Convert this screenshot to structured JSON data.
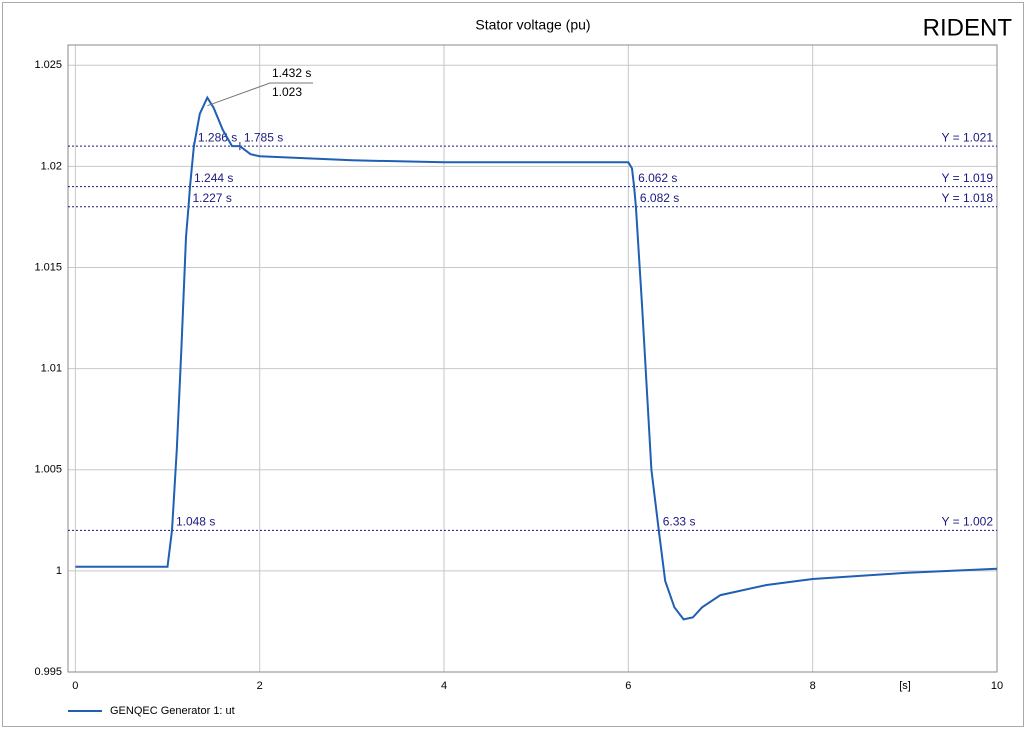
{
  "chart_data": {
    "type": "line",
    "title": "Stator voltage (pu)",
    "logo": "RIDENT",
    "x_unit": "[s]",
    "x": [
      0,
      1.0,
      1.048,
      1.1,
      1.15,
      1.2,
      1.227,
      1.244,
      1.286,
      1.35,
      1.432,
      1.5,
      1.6,
      1.7,
      1.785,
      1.9,
      2.0,
      2.5,
      3,
      4,
      5,
      6.0,
      6.04,
      6.062,
      6.082,
      6.15,
      6.2,
      6.25,
      6.33,
      6.4,
      6.5,
      6.6,
      6.7,
      6.8,
      7,
      7.5,
      8,
      9,
      10
    ],
    "series": [
      {
        "name": "GENQEC Generator 1: ut",
        "color": "#1f5fb4",
        "values": [
          1.0002,
          1.0002,
          1.002,
          1.006,
          1.011,
          1.0165,
          1.018,
          1.019,
          1.021,
          1.0226,
          1.0234,
          1.0229,
          1.0218,
          1.021,
          1.021,
          1.0206,
          1.0205,
          1.0204,
          1.0203,
          1.0202,
          1.0202,
          1.0202,
          1.0199,
          1.019,
          1.018,
          1.013,
          1.009,
          1.005,
          1.002,
          0.9995,
          0.9982,
          0.9976,
          0.9977,
          0.9982,
          0.9988,
          0.9993,
          0.9996,
          0.9999,
          1.0001
        ]
      }
    ],
    "xlim": [
      -0.08,
      10
    ],
    "ylim": [
      0.995,
      1.026
    ],
    "xticks": [
      0,
      2,
      4,
      6,
      8,
      10
    ],
    "yticks": [
      0.995,
      1,
      1.005,
      1.01,
      1.015,
      1.02,
      1.025
    ],
    "grid": true,
    "hlines": [
      {
        "value": 1.021,
        "label": "Y = 1.021",
        "crossings": [
          {
            "value": 1.286,
            "label": "1.286 s"
          },
          {
            "value": 1.785,
            "label": "1.785 s"
          }
        ]
      },
      {
        "value": 1.019,
        "label": "Y = 1.019",
        "crossings": [
          {
            "value": 1.244,
            "label": "1.244 s"
          },
          {
            "value": 6.062,
            "label": "6.062 s"
          }
        ]
      },
      {
        "value": 1.018,
        "label": "Y = 1.018",
        "crossings": [
          {
            "value": 1.227,
            "label": "1.227 s"
          },
          {
            "value": 6.082,
            "label": "6.082 s"
          }
        ]
      },
      {
        "value": 1.002,
        "label": "Y = 1.002",
        "crossings": [
          {
            "value": 1.048,
            "label": "1.048 s"
          },
          {
            "value": 6.33,
            "label": "6.33 s"
          }
        ]
      }
    ],
    "peak": {
      "x": {
        "value": 1.432,
        "label": "1.432 s"
      },
      "y": {
        "value": 1.023,
        "label": "1.023"
      }
    }
  }
}
